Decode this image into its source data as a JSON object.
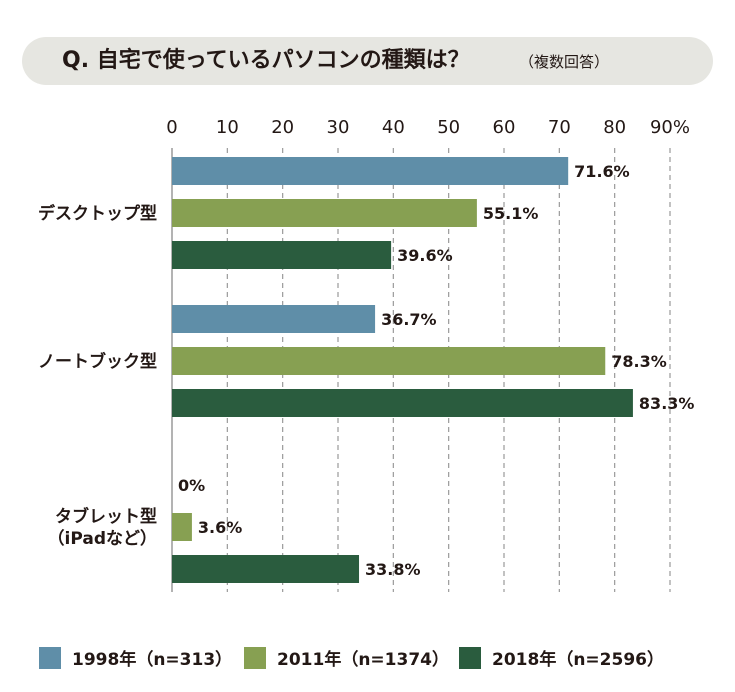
{
  "header": {
    "title": "Q. 自宅で使っているパソコンの種類は？",
    "subtitle": "（複数回答）"
  },
  "colors": {
    "banner_bg": "#e6e6e1",
    "series_1998": "#5f8ea8",
    "series_2011": "#87a052",
    "series_2018": "#2a5c3e",
    "grid": "#9a9a9a"
  },
  "chart_data": {
    "type": "bar",
    "orientation": "horizontal",
    "categories": [
      [
        "デスクトップ型"
      ],
      [
        "ノートブック型"
      ],
      [
        "タブレット型",
        "（iPadなど）"
      ]
    ],
    "series": [
      {
        "name": "1998年（n=313）",
        "values": [
          71.6,
          36.7,
          0
        ],
        "labels": [
          "71.6%",
          "36.7%",
          "0%"
        ]
      },
      {
        "name": "2011年（n=1374）",
        "values": [
          55.1,
          78.3,
          3.6
        ],
        "labels": [
          "55.1%",
          "78.3%",
          "3.6%"
        ]
      },
      {
        "name": "2018年（n=2596）",
        "values": [
          39.6,
          83.3,
          33.8
        ],
        "labels": [
          "39.6%",
          "83.3%",
          "33.8%"
        ]
      }
    ],
    "ticks": [
      "0",
      "10",
      "20",
      "30",
      "40",
      "50",
      "60",
      "70",
      "80",
      "90%"
    ],
    "xlim": [
      0,
      90
    ],
    "grid": true,
    "legend_position": "bottom"
  }
}
